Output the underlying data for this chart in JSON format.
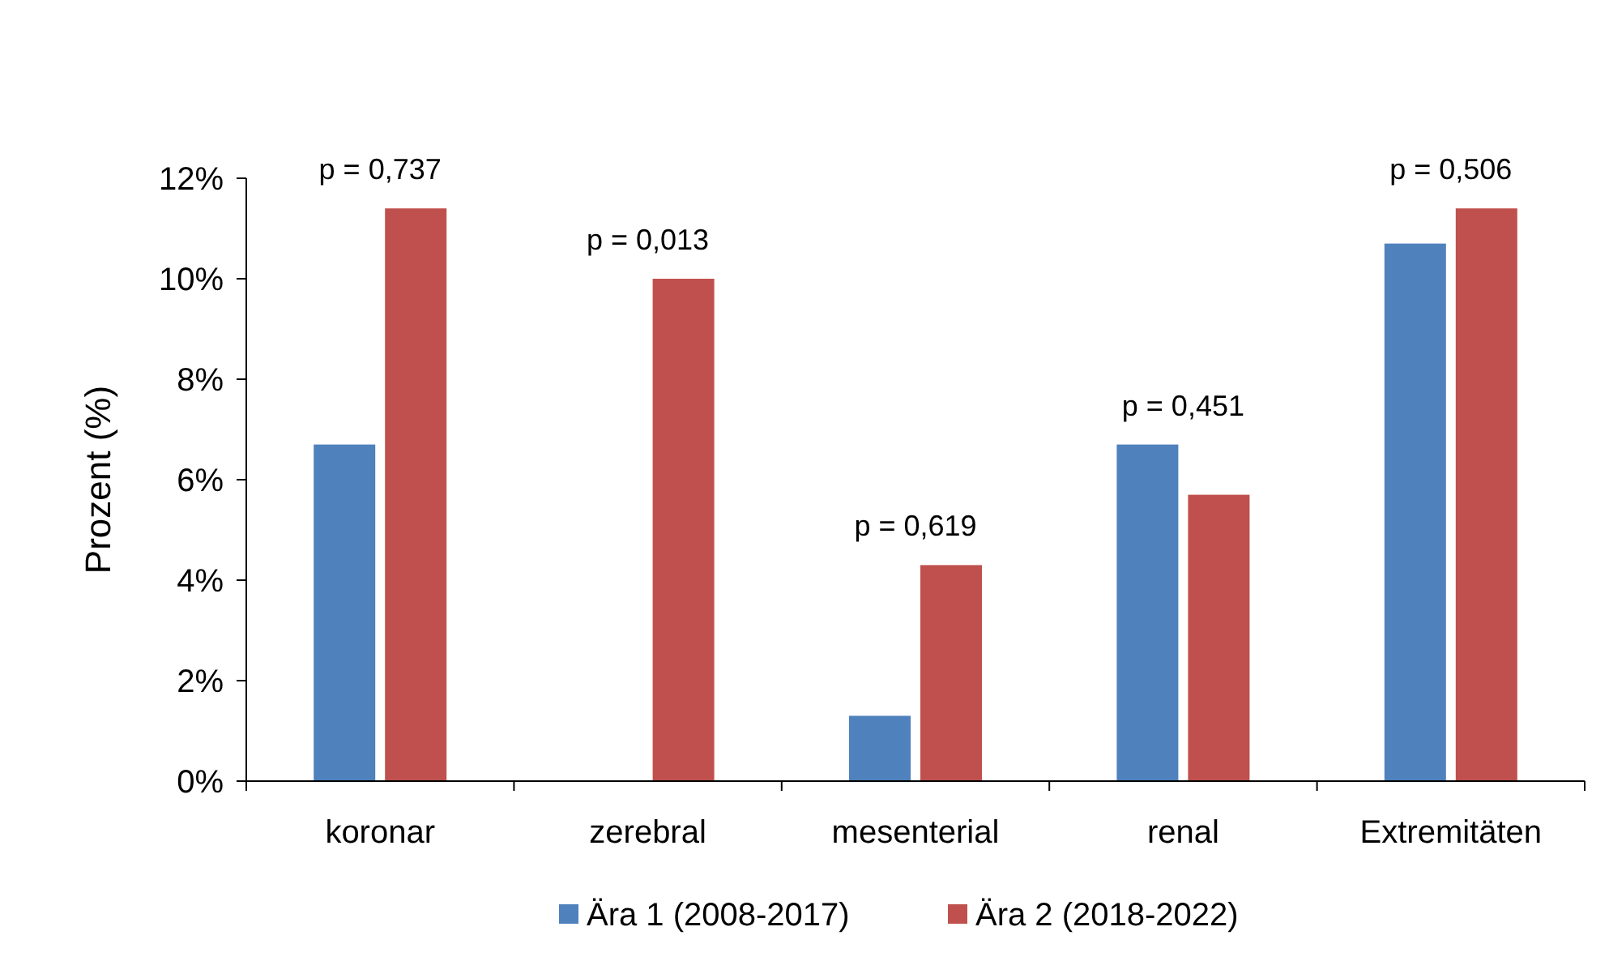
{
  "chart_data": {
    "type": "bar",
    "ylabel": "Prozent (%)",
    "categories": [
      "koronar",
      "zerebral",
      "mesenterial",
      "renal",
      "Extremitäten"
    ],
    "series": [
      {
        "name": "Ära 1 (2008-2017)",
        "color": "#4f81bd",
        "values": [
          6.7,
          0,
          1.3,
          6.7,
          10.7
        ]
      },
      {
        "name": "Ära 2 (2018-2022)",
        "color": "#c0504d",
        "values": [
          11.4,
          10.0,
          4.3,
          5.7,
          11.4
        ]
      }
    ],
    "ylim": [
      0,
      12
    ],
    "yticks": [
      {
        "value": 0,
        "label": "0%"
      },
      {
        "value": 2,
        "label": "2%"
      },
      {
        "value": 4,
        "label": "4%"
      },
      {
        "value": 6,
        "label": "6%"
      },
      {
        "value": 8,
        "label": "8%"
      },
      {
        "value": 10,
        "label": "10%"
      },
      {
        "value": 12,
        "label": "12%"
      }
    ],
    "annotations": [
      {
        "text": "p = 0,737",
        "x": "koronar",
        "y": 11.4
      },
      {
        "text": "p = 0,013",
        "x": "zerebral",
        "y": 10.0
      },
      {
        "text": "p = 0,619",
        "x": "mesenterial",
        "y": 4.3
      },
      {
        "text": "p = 0,451",
        "x": "renal",
        "y": 6.7
      },
      {
        "text": "p = 0,506",
        "x": "Extremitäten",
        "y": 11.4
      }
    ],
    "grid": false,
    "legend": "bottom"
  }
}
